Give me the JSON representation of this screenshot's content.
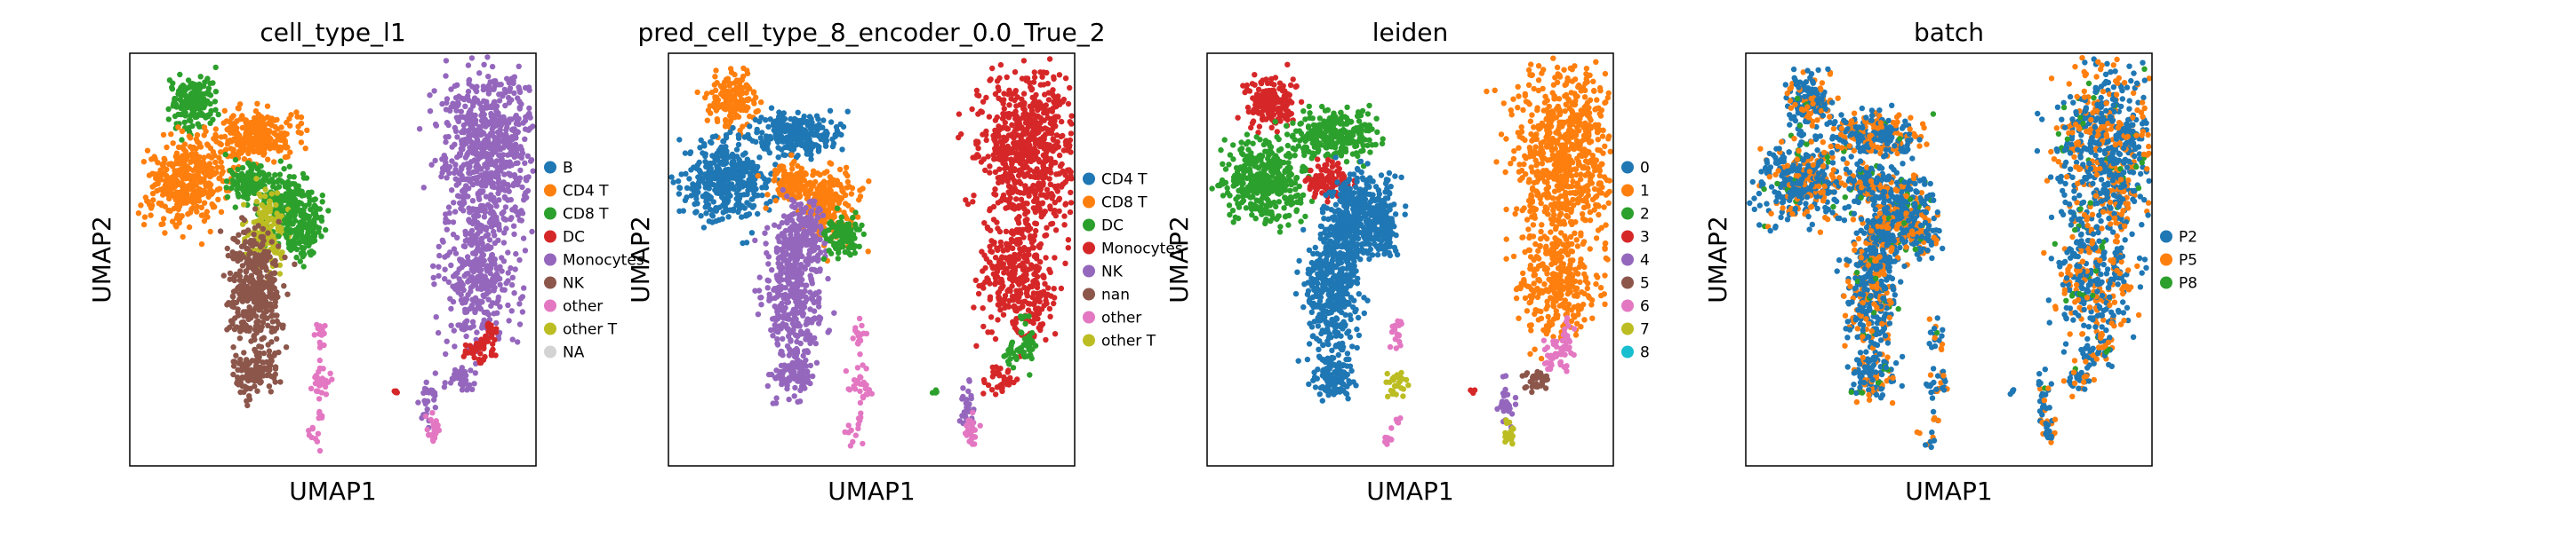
{
  "figure_title": "",
  "chart_data": [
    {
      "type": "scatter",
      "title": "cell_type_l1",
      "xlabel": "UMAP1",
      "ylabel": "UMAP2",
      "legend_placement": "right",
      "grid": false,
      "legend": [
        {
          "name": "B",
          "color": "#1f77b4"
        },
        {
          "name": "CD4 T",
          "color": "#ff7f0e"
        },
        {
          "name": "CD8 T",
          "color": "#2ca02c"
        },
        {
          "name": "DC",
          "color": "#d62728"
        },
        {
          "name": "Monocytes",
          "color": "#9467bd"
        },
        {
          "name": "NK",
          "color": "#8c564b"
        },
        {
          "name": "other",
          "color": "#e377c2"
        },
        {
          "name": "other T",
          "color": "#bcbd22"
        },
        {
          "name": "NA",
          "color": "#d3d3d3"
        }
      ]
    },
    {
      "type": "scatter",
      "title": "pred_cell_type_8_encoder_0.0_True_2",
      "xlabel": "UMAP1",
      "ylabel": "UMAP2",
      "legend_placement": "right",
      "grid": false,
      "legend": [
        {
          "name": "CD4 T",
          "color": "#1f77b4"
        },
        {
          "name": "CD8 T",
          "color": "#ff7f0e"
        },
        {
          "name": "DC",
          "color": "#2ca02c"
        },
        {
          "name": "Monocytes",
          "color": "#d62728"
        },
        {
          "name": "NK",
          "color": "#9467bd"
        },
        {
          "name": "nan",
          "color": "#8c564b"
        },
        {
          "name": "other",
          "color": "#e377c2"
        },
        {
          "name": "other T",
          "color": "#bcbd22"
        }
      ]
    },
    {
      "type": "scatter",
      "title": "leiden",
      "xlabel": "UMAP1",
      "ylabel": "UMAP2",
      "legend_placement": "right",
      "grid": false,
      "legend": [
        {
          "name": "0",
          "color": "#1f77b4"
        },
        {
          "name": "1",
          "color": "#ff7f0e"
        },
        {
          "name": "2",
          "color": "#2ca02c"
        },
        {
          "name": "3",
          "color": "#d62728"
        },
        {
          "name": "4",
          "color": "#9467bd"
        },
        {
          "name": "5",
          "color": "#8c564b"
        },
        {
          "name": "6",
          "color": "#e377c2"
        },
        {
          "name": "7",
          "color": "#bcbd22"
        },
        {
          "name": "8",
          "color": "#17becf"
        }
      ]
    },
    {
      "type": "scatter",
      "title": "batch",
      "xlabel": "UMAP1",
      "ylabel": "UMAP2",
      "legend_placement": "right",
      "grid": false,
      "legend": [
        {
          "name": "P2",
          "color": "#1f77b4"
        },
        {
          "name": "P5",
          "color": "#ff7f0e"
        },
        {
          "name": "P8",
          "color": "#2ca02c"
        }
      ]
    }
  ]
}
